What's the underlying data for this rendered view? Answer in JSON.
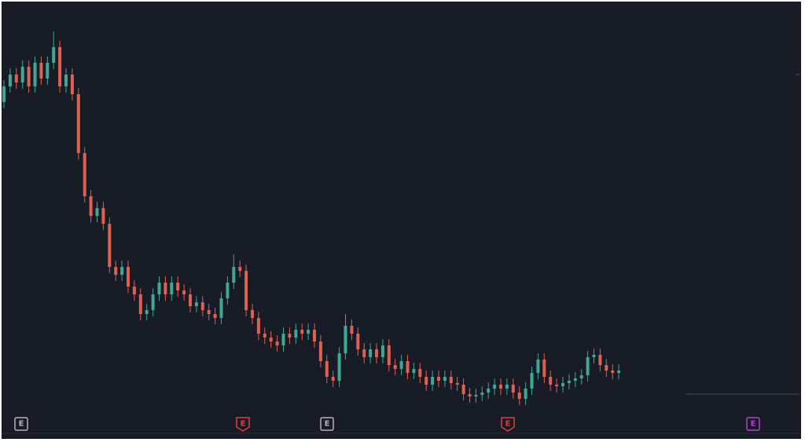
{
  "chart_data": {
    "type": "candlestick",
    "ylim": [
      0,
      500
    ],
    "up_color": "#3fa796",
    "down_color": "#e0604f",
    "open": [
      390,
      410,
      425,
      415,
      435,
      410,
      440,
      420,
      440,
      460,
      410,
      425,
      400,
      325,
      270,
      245,
      255,
      235,
      180,
      170,
      180,
      155,
      145,
      120,
      125,
      145,
      160,
      145,
      160,
      150,
      145,
      130,
      135,
      125,
      120,
      115,
      140,
      160,
      180,
      175,
      125,
      115,
      95,
      90,
      85,
      80,
      95,
      90,
      100,
      95,
      100,
      85,
      60,
      40,
      35,
      70,
      105,
      95,
      75,
      65,
      75,
      65,
      80,
      55,
      50,
      60,
      45,
      50,
      40,
      30,
      40,
      35,
      40,
      32,
      30,
      18,
      15,
      17,
      20,
      25,
      30,
      25,
      30,
      20,
      12,
      25,
      45,
      62,
      40,
      30,
      28,
      32,
      35,
      38,
      42,
      65,
      68,
      55,
      48,
      45
    ],
    "high": [
      418,
      433,
      433,
      443,
      443,
      448,
      448,
      448,
      480,
      468,
      433,
      433,
      408,
      333,
      278,
      263,
      263,
      243,
      188,
      188,
      188,
      163,
      153,
      133,
      153,
      168,
      168,
      168,
      168,
      158,
      153,
      143,
      143,
      133,
      128,
      148,
      168,
      196,
      188,
      183,
      133,
      123,
      103,
      98,
      93,
      103,
      103,
      108,
      108,
      108,
      108,
      93,
      68,
      48,
      78,
      120,
      113,
      103,
      83,
      83,
      83,
      88,
      88,
      63,
      68,
      68,
      58,
      58,
      48,
      48,
      48,
      48,
      48,
      40,
      38,
      26,
      25,
      28,
      33,
      38,
      38,
      38,
      38,
      28,
      33,
      53,
      70,
      70,
      48,
      38,
      40,
      43,
      46,
      50,
      73,
      76,
      76,
      63,
      56,
      56
    ],
    "low": [
      382,
      402,
      407,
      407,
      402,
      402,
      412,
      412,
      432,
      402,
      402,
      392,
      317,
      262,
      237,
      237,
      227,
      172,
      162,
      162,
      147,
      137,
      112,
      112,
      117,
      137,
      137,
      137,
      142,
      137,
      122,
      122,
      117,
      112,
      107,
      107,
      132,
      152,
      167,
      117,
      107,
      87,
      82,
      77,
      72,
      72,
      82,
      82,
      87,
      87,
      77,
      52,
      32,
      27,
      27,
      62,
      87,
      67,
      57,
      57,
      57,
      57,
      47,
      42,
      42,
      37,
      37,
      32,
      22,
      22,
      27,
      27,
      24,
      22,
      10,
      7,
      7,
      9,
      12,
      17,
      17,
      17,
      12,
      4,
      4,
      17,
      37,
      32,
      22,
      20,
      20,
      24,
      27,
      30,
      34,
      57,
      47,
      40,
      37,
      37
    ],
    "close": [
      410,
      425,
      415,
      435,
      410,
      440,
      420,
      440,
      460,
      410,
      425,
      400,
      325,
      270,
      245,
      255,
      235,
      180,
      170,
      180,
      155,
      145,
      120,
      125,
      145,
      160,
      145,
      160,
      150,
      145,
      130,
      135,
      125,
      120,
      115,
      140,
      160,
      180,
      175,
      125,
      115,
      95,
      90,
      85,
      80,
      95,
      90,
      100,
      95,
      100,
      85,
      60,
      40,
      35,
      70,
      105,
      95,
      75,
      65,
      75,
      65,
      80,
      55,
      50,
      60,
      45,
      50,
      40,
      30,
      40,
      35,
      40,
      32,
      30,
      18,
      15,
      17,
      20,
      25,
      30,
      25,
      30,
      20,
      12,
      25,
      45,
      62,
      40,
      30,
      28,
      32,
      35,
      38,
      42,
      65,
      68,
      55,
      48,
      45,
      48
    ],
    "earnings": [
      {
        "label": "E",
        "color": "#b2b5be"
      },
      {
        "label": "E",
        "color": "#e0403a"
      },
      {
        "label": "E",
        "color": "#b2b5be"
      },
      {
        "label": "E",
        "color": "#e0403a"
      },
      {
        "label": "E",
        "color": "#b53fd6"
      }
    ]
  }
}
